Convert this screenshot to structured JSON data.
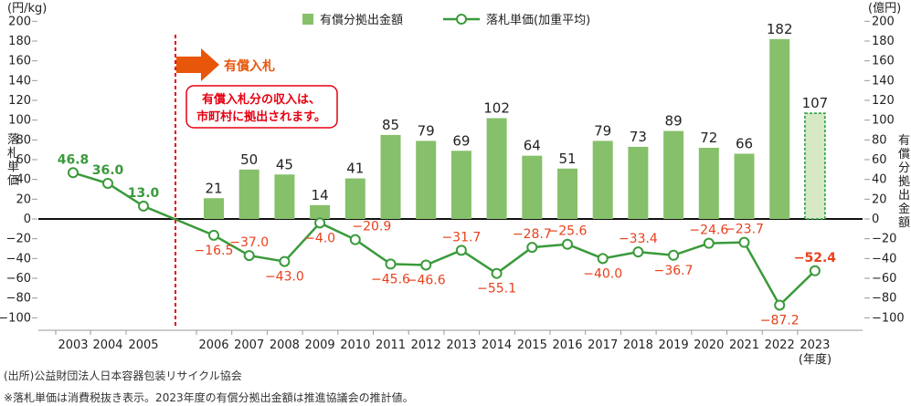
{
  "chart_data": {
    "type": "bar+line",
    "left_axis": {
      "unit": "(円/kg)",
      "label": "落札単価",
      "ylim": [
        -100,
        200
      ],
      "ticks": [
        200,
        180,
        160,
        140,
        120,
        100,
        80,
        60,
        40,
        20,
        0,
        -20,
        -40,
        -60,
        -80,
        -100
      ]
    },
    "right_axis": {
      "unit": "(億円)",
      "label": "有償分拠出金額",
      "ylim": [
        -100,
        200
      ],
      "ticks": [
        200,
        180,
        160,
        140,
        120,
        100,
        80,
        60,
        40,
        20,
        0,
        -20,
        -40,
        -60,
        -80,
        -100
      ]
    },
    "x_unit": "(年度)",
    "categories": [
      "2003",
      "2004",
      "2005",
      "2006",
      "2007",
      "2008",
      "2009",
      "2010",
      "2011",
      "2012",
      "2013",
      "2014",
      "2015",
      "2016",
      "2017",
      "2018",
      "2019",
      "2020",
      "2021",
      "2022",
      "2023"
    ],
    "series": [
      {
        "name": "有償分拠出金額",
        "type": "bar",
        "color": "#86c06a",
        "values": [
          null,
          null,
          null,
          21,
          50,
          45,
          14,
          41,
          85,
          79,
          69,
          102,
          64,
          51,
          79,
          73,
          89,
          72,
          66,
          182,
          107
        ],
        "estimated_last": true
      },
      {
        "name": "落札単価(加重平均)",
        "type": "line",
        "color": "#3a9a3a",
        "values": [
          46.8,
          36.0,
          13.0,
          -16.5,
          -37.0,
          -43.0,
          -4.0,
          -20.9,
          -45.6,
          -46.6,
          -31.7,
          -55.1,
          -28.7,
          -25.6,
          -40.0,
          -33.4,
          -36.7,
          -24.6,
          -23.7,
          -87.2,
          -52.4
        ]
      }
    ],
    "annotations": {
      "arrow_label": "有償入札",
      "box_line1": "有償入札分の収入は、",
      "box_line2": "市町村に拠出されます。"
    }
  },
  "colors": {
    "bar": "#86c06a",
    "bar_est": "#d6e8c4",
    "line": "#3a9a3a",
    "neg": "#e8401c",
    "arrow": "#e8560a",
    "divider": "#e60012"
  },
  "notes": {
    "source": "(出所)公益財団法人日本容器包装リサイクル協会",
    "remark": "※落札単価は消費税抜き表示。2023年度の有償分拠出金額は推進協議会の推計値。"
  }
}
